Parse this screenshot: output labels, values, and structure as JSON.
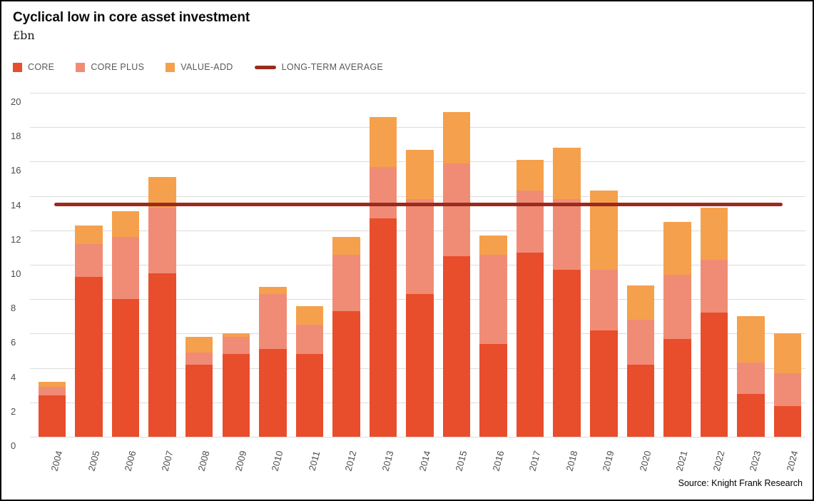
{
  "header": {
    "title": "Cyclical low in core asset investment",
    "subtitle": "£bn"
  },
  "legend": [
    {
      "label": "CORE",
      "color": "#E84D2C",
      "swatch": "square"
    },
    {
      "label": "CORE PLUS",
      "color": "#F08C75",
      "swatch": "square"
    },
    {
      "label": "VALUE-ADD",
      "color": "#F5A04C",
      "swatch": "square"
    },
    {
      "label": "LONG-TERM AVERAGE",
      "color": "#9A2B1E",
      "swatch": "line"
    }
  ],
  "source": "Source: Knight Frank Research",
  "colors": {
    "core": "#E84D2C",
    "core_plus": "#F08C75",
    "value_add": "#F5A04C",
    "average_line": "#9A2B1E",
    "gridline": "#DCDCDC",
    "axis_text": "#4D4D4D"
  },
  "chart_data": {
    "type": "bar",
    "stacked": true,
    "title": "Cyclical low in core asset investment",
    "ylabel": "£bn",
    "xlabel": "",
    "ylim": [
      0,
      20
    ],
    "ytick_interval": 2,
    "grid": true,
    "legend_position": "top",
    "categories": [
      "2004",
      "2005",
      "2006",
      "2007",
      "2008",
      "2009",
      "2010",
      "2011",
      "2012",
      "2013",
      "2014",
      "2015",
      "2016",
      "2017",
      "2018",
      "2019",
      "2020",
      "2021",
      "2022",
      "2023",
      "2024"
    ],
    "series": [
      {
        "name": "CORE",
        "color": "#E84D2C",
        "values": [
          2.4,
          9.3,
          8.0,
          9.5,
          4.2,
          4.8,
          5.1,
          4.8,
          7.3,
          12.7,
          8.3,
          10.5,
          5.4,
          10.7,
          9.7,
          6.2,
          4.2,
          5.7,
          7.2,
          2.5,
          1.8
        ]
      },
      {
        "name": "CORE PLUS",
        "color": "#F08C75",
        "values": [
          0.5,
          1.9,
          3.6,
          3.8,
          0.7,
          1.0,
          3.2,
          1.7,
          3.3,
          3.0,
          5.5,
          5.4,
          5.2,
          3.6,
          4.1,
          3.5,
          2.6,
          3.7,
          3.1,
          1.8,
          1.9
        ]
      },
      {
        "name": "VALUE-ADD",
        "color": "#F5A04C",
        "values": [
          0.3,
          1.1,
          1.5,
          1.8,
          0.9,
          0.2,
          0.4,
          1.1,
          1.0,
          2.9,
          2.9,
          3.0,
          1.1,
          1.8,
          3.0,
          4.6,
          2.0,
          3.1,
          3.0,
          2.7,
          2.3
        ]
      }
    ],
    "reference_line": {
      "name": "LONG-TERM AVERAGE",
      "value": 13.5,
      "color": "#9A2B1E"
    }
  }
}
